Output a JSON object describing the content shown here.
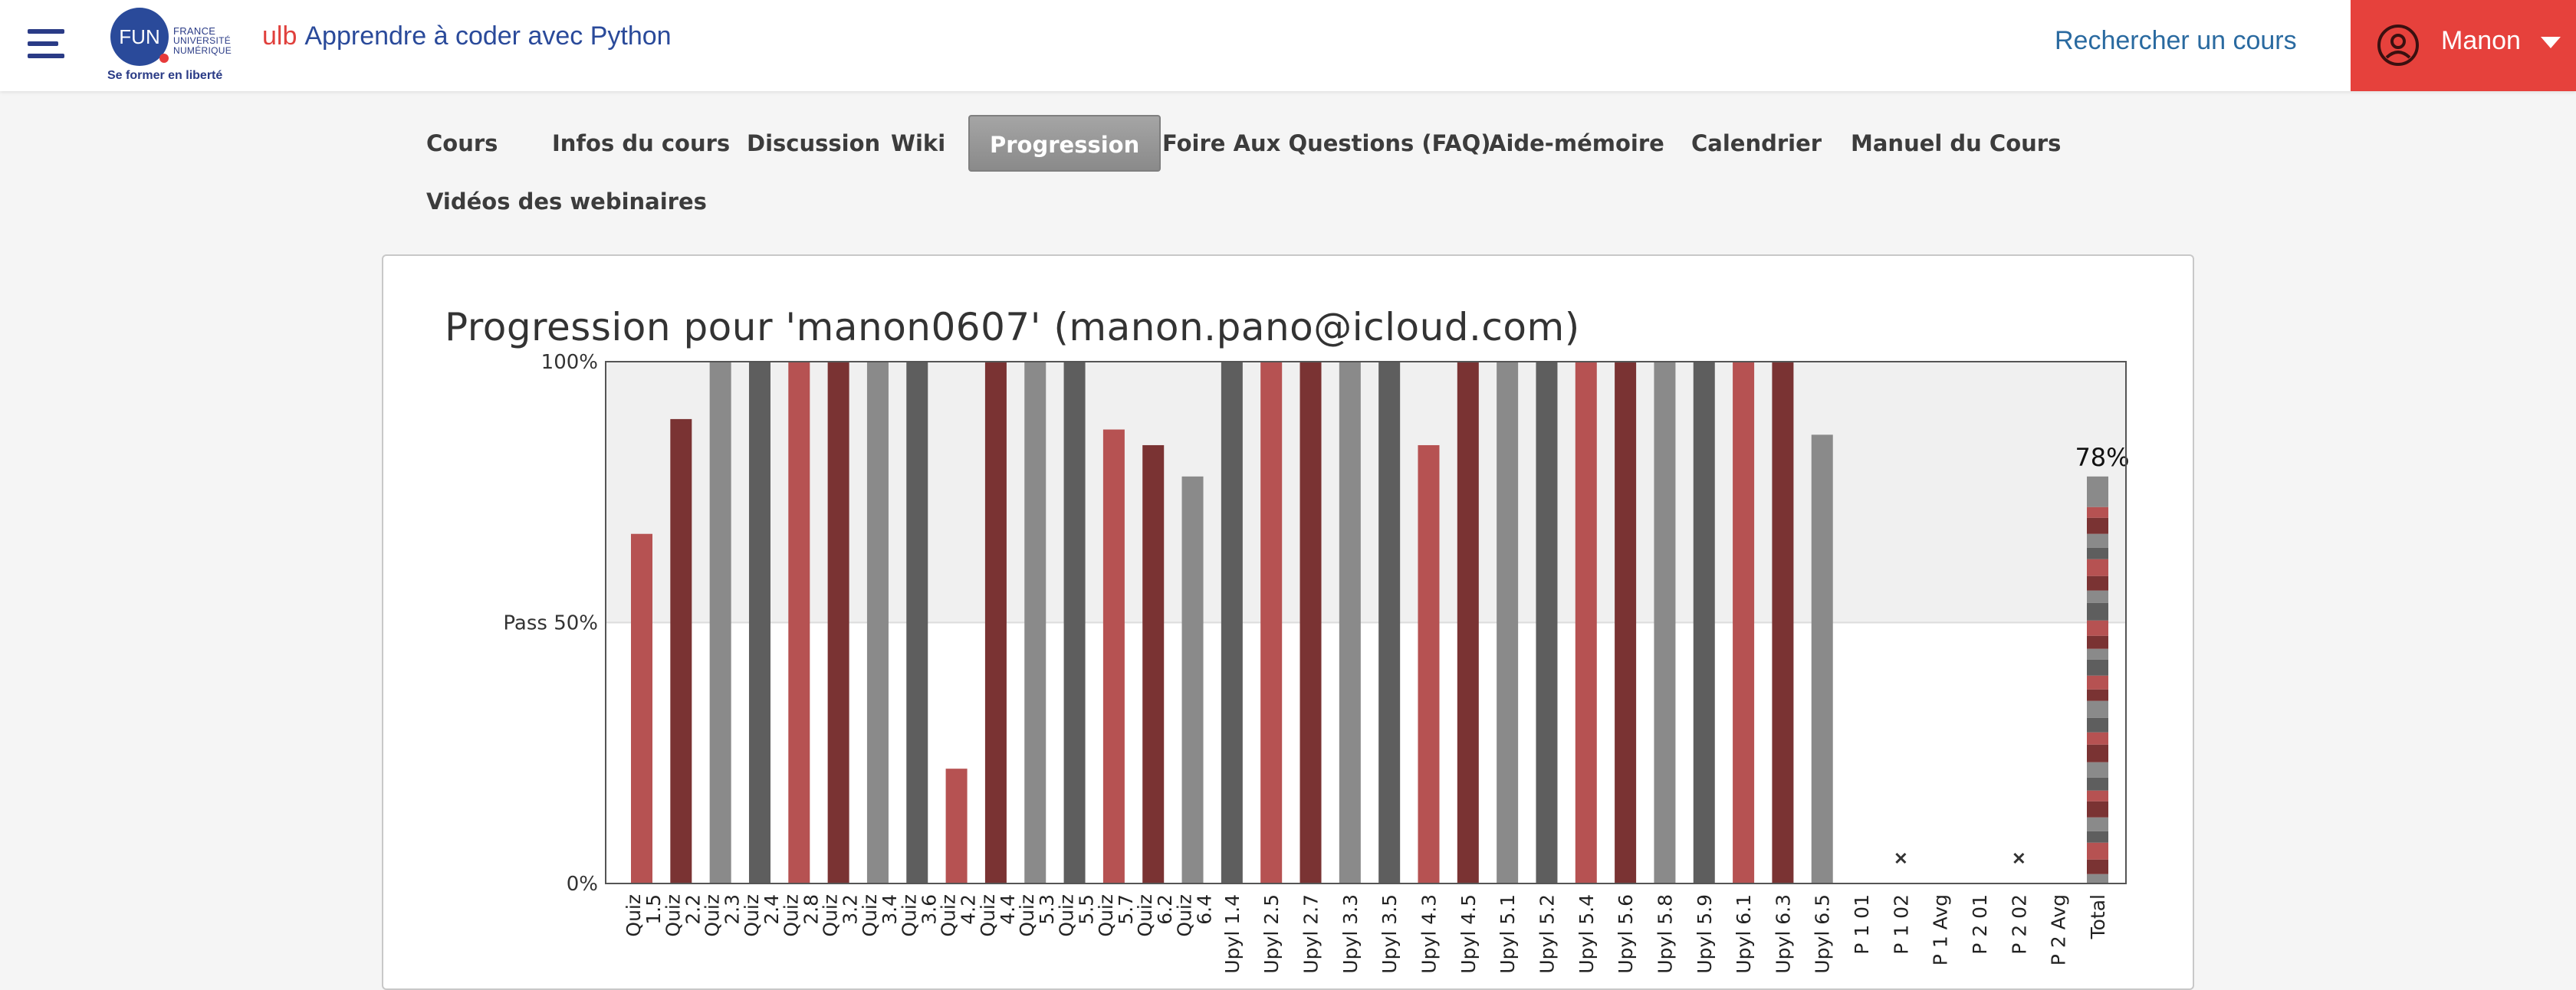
{
  "header": {
    "logo": {
      "name": "FUN",
      "lines": [
        "FRANCE",
        "UNIVERSITÉ",
        "NUMÉRIQUE"
      ],
      "tagline": "Se former en liberté"
    },
    "course_org": "ulb",
    "course_name": "Apprendre à coder avec Python",
    "search_label": "Rechercher un cours",
    "user_name": "Manon",
    "colors": {
      "user_bg": "#e6413c",
      "brand": "#2a4a9a"
    }
  },
  "tabs": [
    {
      "label": "Cours"
    },
    {
      "label": "Infos du cours"
    },
    {
      "label": "Discussion"
    },
    {
      "label": "Wiki"
    },
    {
      "label": "Progression",
      "active": true
    },
    {
      "label": "Foire Aux Questions (FAQ)"
    },
    {
      "label": "Aide-mémoire"
    },
    {
      "label": "Calendrier"
    },
    {
      "label": "Manuel du Cours"
    },
    {
      "label": "Vidéos des webinaires"
    }
  ],
  "progress": {
    "title": "Progression pour 'manon0607' (manon.pano@icloud.com)"
  },
  "chart_data": {
    "type": "bar",
    "ylim": [
      0,
      100
    ],
    "yticks": [
      {
        "value": 0,
        "label": "0%"
      },
      {
        "value": 50,
        "label": "Pass 50%"
      },
      {
        "value": 100,
        "label": "100%"
      }
    ],
    "pass_threshold": 50,
    "categories": [
      "Quiz 1.5",
      "Quiz 2.2",
      "Quiz 2.3",
      "Quiz 2.4",
      "Quiz 2.8",
      "Quiz 3.2",
      "Quiz 3.4",
      "Quiz 3.6",
      "Quiz 4.2",
      "Quiz 4.4",
      "Quiz 5.3",
      "Quiz 5.5",
      "Quiz 5.7",
      "Quiz 6.2",
      "Quiz 6.4",
      "Upyl 1.4",
      "Upyl 2.5",
      "Upyl 2.7",
      "Upyl 3.3",
      "Upyl 3.5",
      "Upyl 4.3",
      "Upyl 4.5",
      "Upyl 5.1",
      "Upyl 5.2",
      "Upyl 5.4",
      "Upyl 5.6",
      "Upyl 5.8",
      "Upyl 5.9",
      "Upyl 6.1",
      "Upyl 6.3",
      "Upyl 6.5",
      "P 1 01",
      "P 1 02",
      "P 1 Avg",
      "P 2 01",
      "P 2 02",
      "P 2 Avg",
      "Total"
    ],
    "category_labels": [
      [
        "Quiz",
        "1.5"
      ],
      [
        "Quiz",
        "2.2"
      ],
      [
        "Quiz",
        "2.3"
      ],
      [
        "Quiz",
        "2.4"
      ],
      [
        "Quiz",
        "2.8"
      ],
      [
        "Quiz",
        "3.2"
      ],
      [
        "Quiz",
        "3.4"
      ],
      [
        "Quiz",
        "3.6"
      ],
      [
        "Quiz",
        "4.2"
      ],
      [
        "Quiz",
        "4.4"
      ],
      [
        "Quiz",
        "5.3"
      ],
      [
        "Quiz",
        "5.5"
      ],
      [
        "Quiz",
        "5.7"
      ],
      [
        "Quiz",
        "6.2"
      ],
      [
        "Quiz",
        "6.4"
      ],
      [
        "Upyl 1.4"
      ],
      [
        "Upyl 2.5"
      ],
      [
        "Upyl 2.7"
      ],
      [
        "Upyl 3.3"
      ],
      [
        "Upyl 3.5"
      ],
      [
        "Upyl 4.3"
      ],
      [
        "Upyl 4.5"
      ],
      [
        "Upyl 5.1"
      ],
      [
        "Upyl 5.2"
      ],
      [
        "Upyl 5.4"
      ],
      [
        "Upyl 5.6"
      ],
      [
        "Upyl 5.8"
      ],
      [
        "Upyl 5.9"
      ],
      [
        "Upyl 6.1"
      ],
      [
        "Upyl 6.3"
      ],
      [
        "Upyl 6.5"
      ],
      [
        "P 1 01"
      ],
      [
        "P 1 02"
      ],
      [
        "P 1 Avg"
      ],
      [
        "P 2 01"
      ],
      [
        "P 2 02"
      ],
      [
        "P 2 Avg"
      ],
      [
        "Total"
      ]
    ],
    "values": [
      67,
      89,
      100,
      100,
      100,
      100,
      100,
      100,
      22,
      100,
      100,
      100,
      87,
      84,
      78,
      100,
      100,
      100,
      100,
      100,
      84,
      100,
      100,
      100,
      100,
      100,
      100,
      100,
      100,
      100,
      86,
      null,
      0,
      null,
      null,
      0,
      null,
      78
    ],
    "bar_colors": [
      "#b65252",
      "#7a3333",
      "#8a8a8a",
      "#5e5e5e",
      "#b65252",
      "#7a3333",
      "#8a8a8a",
      "#5e5e5e",
      "#b65252",
      "#7a3333",
      "#8a8a8a",
      "#5e5e5e",
      "#b65252",
      "#7a3333",
      "#8a8a8a",
      "#5e5e5e",
      "#b65252",
      "#7a3333",
      "#8a8a8a",
      "#5e5e5e",
      "#b65252",
      "#7a3333",
      "#8a8a8a",
      "#5e5e5e",
      "#b65252",
      "#7a3333",
      "#8a8a8a",
      "#5e5e5e",
      "#b65252",
      "#7a3333",
      "#8a8a8a",
      "#5e5e5e",
      "#5e5e5e",
      "#5e5e5e",
      "#5e5e5e",
      "#5e5e5e",
      "#5e5e5e",
      "#8a8a8a"
    ],
    "missing_marker_categories": [
      "P 1 02",
      "P 2 02"
    ],
    "total_label": "78%",
    "colors": {
      "light_red": "#b65252",
      "dark_red": "#7a3333",
      "light_gray": "#8a8a8a",
      "dark_gray": "#5e5e5e",
      "above_pass_bg": "#f0f0f0"
    }
  }
}
